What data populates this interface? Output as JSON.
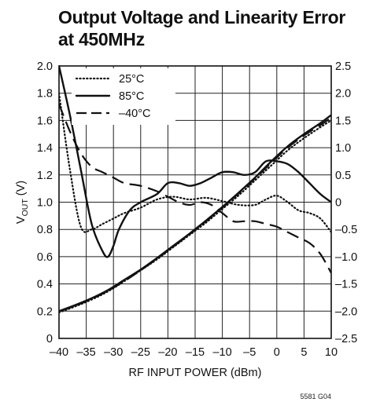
{
  "title_line1": "Output Voltage and Linearity Error",
  "title_line2": "at 450MHz",
  "figure_id": "5581 G04",
  "chart_data": {
    "type": "line",
    "xlabel": "RF INPUT POWER (dBm)",
    "ylabel_main": "V",
    "ylabel_sub": "OUT",
    "ylabel_unit": " (V)",
    "xlim": [
      -40,
      10
    ],
    "ylim": [
      0,
      2.0
    ],
    "y2lim": [
      -2.5,
      2.5
    ],
    "xticks": [
      -40,
      -35,
      -30,
      -25,
      -20,
      -15,
      -10,
      -5,
      0,
      5,
      10
    ],
    "xtick_labels": [
      "–40",
      "–35",
      "–30",
      "–25",
      "–20",
      "–15",
      "–10",
      "–5",
      "0",
      "5",
      "10"
    ],
    "yticks": [
      0,
      0.2,
      0.4,
      0.6,
      0.8,
      1.0,
      1.2,
      1.4,
      1.6,
      1.8,
      2.0
    ],
    "ytick_labels": [
      "0",
      "0.2",
      "0.4",
      "0.6",
      "0.8",
      "1.0",
      "1.2",
      "1.4",
      "1.6",
      "1.8",
      "2.0"
    ],
    "y2ticks": [
      -2.5,
      -2.0,
      -1.5,
      -1.0,
      -0.5,
      0,
      0.5,
      1.0,
      1.5,
      2.0,
      2.5
    ],
    "y2tick_labels": [
      "–2.5",
      "–2.0",
      "–1.5",
      "–1.0",
      "–0.5",
      "0",
      "0.5",
      "1.0",
      "1.5",
      "2.0",
      "2.5"
    ],
    "grid": true,
    "legend_position": "top-left",
    "series": [
      {
        "name": "25°C",
        "style": "dotted",
        "group": "vout",
        "x": [
          -40,
          -37,
          -34,
          -31,
          -28,
          -25,
          -22,
          -19,
          -16,
          -13,
          -10,
          -7,
          -4,
          -1,
          2,
          5,
          8,
          10
        ],
        "y": [
          0.19,
          0.235,
          0.285,
          0.345,
          0.42,
          0.5,
          0.58,
          0.67,
          0.76,
          0.85,
          0.95,
          1.05,
          1.16,
          1.27,
          1.38,
          1.47,
          1.55,
          1.6
        ]
      },
      {
        "name": "85°C",
        "style": "solid",
        "group": "vout",
        "x": [
          -40,
          -37,
          -34,
          -31,
          -28,
          -25,
          -22,
          -19,
          -16,
          -13,
          -10,
          -7,
          -4,
          -1,
          2,
          5,
          8,
          10
        ],
        "y": [
          0.2,
          0.245,
          0.295,
          0.355,
          0.43,
          0.505,
          0.59,
          0.68,
          0.77,
          0.865,
          0.965,
          1.07,
          1.18,
          1.3,
          1.41,
          1.5,
          1.58,
          1.64
        ]
      },
      {
        "name": "–40°C",
        "style": "dashed",
        "group": "vout",
        "x": [
          -40,
          -37,
          -34,
          -31,
          -28,
          -25,
          -22,
          -19,
          -16,
          -13,
          -10,
          -7,
          -4,
          -1,
          2,
          5,
          8,
          10
        ],
        "y": [
          0.2,
          0.24,
          0.29,
          0.35,
          0.42,
          0.5,
          0.585,
          0.675,
          0.765,
          0.86,
          0.96,
          1.065,
          1.175,
          1.29,
          1.4,
          1.49,
          1.565,
          1.62
        ]
      },
      {
        "name": "25°C",
        "style": "dotted",
        "group": "error",
        "x": [
          -40,
          -38,
          -36,
          -34,
          -32,
          -30,
          -28,
          -25,
          -22,
          -19,
          -16,
          -13,
          -10,
          -7,
          -4,
          -2,
          0,
          2,
          4,
          6,
          8,
          10
        ],
        "y": [
          2.0,
          0.6,
          -0.45,
          -0.5,
          -0.4,
          -0.3,
          -0.2,
          -0.1,
          0.05,
          0.1,
          0.05,
          0.08,
          0.02,
          -0.05,
          -0.05,
          0.05,
          0.12,
          0.0,
          -0.15,
          -0.2,
          -0.3,
          -0.55
        ]
      },
      {
        "name": "85°C",
        "style": "solid",
        "group": "error",
        "x": [
          -40,
          -38,
          -36,
          -34,
          -32,
          -31,
          -30,
          -29,
          -27,
          -25,
          -22,
          -20,
          -18,
          -16,
          -14,
          -12,
          -10,
          -8,
          -6,
          -4,
          -2,
          0,
          2,
          4,
          6,
          8,
          10
        ],
        "y": [
          2.5,
          1.6,
          0.6,
          -0.4,
          -0.9,
          -1.0,
          -0.8,
          -0.5,
          -0.15,
          0.0,
          0.15,
          0.35,
          0.35,
          0.3,
          0.35,
          0.45,
          0.55,
          0.55,
          0.5,
          0.55,
          0.75,
          0.75,
          0.7,
          0.55,
          0.35,
          0.15,
          0.0
        ]
      },
      {
        "name": "–40°C",
        "style": "dashed",
        "group": "error",
        "x": [
          -40,
          -38,
          -36,
          -34,
          -32,
          -30,
          -28,
          -25,
          -22,
          -20,
          -18,
          -16,
          -14,
          -12,
          -10,
          -8,
          -6,
          -4,
          -2,
          0,
          2,
          4,
          6,
          8,
          10
        ],
        "y": [
          1.8,
          1.3,
          0.9,
          0.65,
          0.55,
          0.45,
          0.35,
          0.3,
          0.2,
          0.1,
          0.0,
          -0.05,
          0.0,
          -0.05,
          -0.2,
          -0.35,
          -0.35,
          -0.35,
          -0.4,
          -0.45,
          -0.55,
          -0.65,
          -0.75,
          -0.95,
          -1.3
        ]
      }
    ]
  }
}
